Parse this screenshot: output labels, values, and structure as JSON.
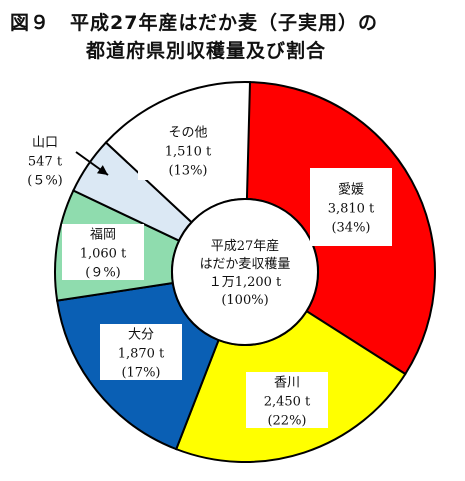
{
  "chart_data": {
    "type": "pie",
    "title_lines": [
      "図９　平成27年産はだか麦（子実用）の",
      "都道府県別収穫量及び割合"
    ],
    "center_label": {
      "lines": [
        "平成27年産",
        "はだか麦収穫量",
        "１万1,200 t",
        "(100%)"
      ]
    },
    "series": [
      {
        "name": "愛媛",
        "value": 3810,
        "value_label": "3,810 t",
        "percent_label": "(34%)",
        "percent": 34,
        "color": "#ff0000"
      },
      {
        "name": "香川",
        "value": 2450,
        "value_label": "2,450 t",
        "percent_label": "(22%)",
        "percent": 22,
        "color": "#ffff00"
      },
      {
        "name": "大分",
        "value": 1870,
        "value_label": "1,870 t",
        "percent_label": "(17%)",
        "percent": 17,
        "color": "#0a5fb4"
      },
      {
        "name": "福岡",
        "value": 1060,
        "value_label": "1,060 t",
        "percent_label": "(９%)",
        "percent": 9,
        "color": "#8fdcae"
      },
      {
        "name": "山口",
        "value": 547,
        "value_label": "547 t",
        "percent_label": "(５%)",
        "percent": 5,
        "color": "#dbe8f4"
      },
      {
        "name": "その他",
        "value": 1510,
        "value_label": "1,510 t",
        "percent_label": "(13%)",
        "percent": 13,
        "color": "#ffffff"
      }
    ],
    "total": 11200,
    "start_angle_deg": 0,
    "direction": "clockwise"
  }
}
